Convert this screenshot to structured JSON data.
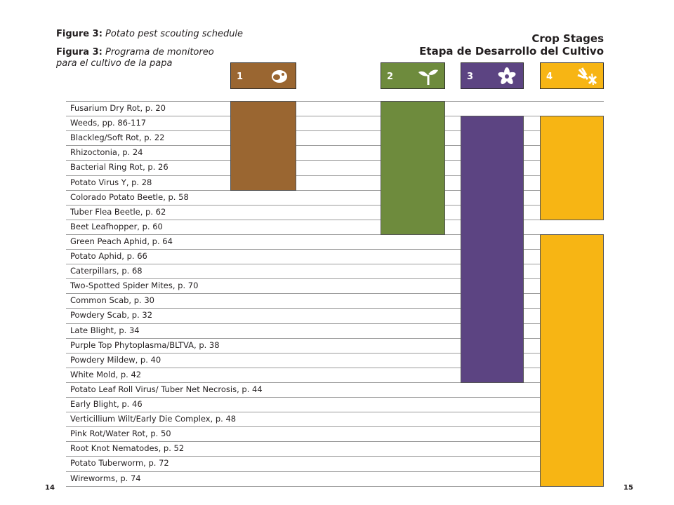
{
  "header": {
    "fig_en_prefix": "Figure 3:",
    "fig_en_title": "Potato pest scouting schedule",
    "fig_es_prefix": "Figura 3:",
    "fig_es_title_line1": "Programa de monitoreo",
    "fig_es_title_line2": "para el cultivo de la papa",
    "stages_en": "Crop Stages",
    "stages_es": "Etapa de Desarrollo del Cultivo"
  },
  "page_numbers": {
    "left": "14",
    "right": "15"
  },
  "chart_data": {
    "type": "table",
    "title": "Figure 3: Potato pest scouting schedule",
    "stages": [
      {
        "label": "1",
        "color": "#9a6631",
        "icon": "seed-tuber-icon"
      },
      {
        "label": "2",
        "color": "#6e8b3d",
        "icon": "sprout-icon"
      },
      {
        "label": "3",
        "color": "#5c4482",
        "icon": "flower-icon"
      },
      {
        "label": "4",
        "color": "#f7b514",
        "icon": "mature-plant-icon"
      }
    ],
    "rows": [
      {
        "pest": "Fusarium Dry Rot, p. 20",
        "stages": [
          1,
          2
        ]
      },
      {
        "pest": "Weeds, pp. 86-117",
        "stages": [
          1,
          2,
          3,
          4
        ]
      },
      {
        "pest": "Blackleg/Soft Rot, p. 22",
        "stages": [
          1,
          2,
          3,
          4
        ]
      },
      {
        "pest": "Rhizoctonia, p. 24",
        "stages": [
          1,
          2,
          3,
          4
        ]
      },
      {
        "pest": "Bacterial Ring Rot, p. 26",
        "stages": [
          1,
          2,
          3,
          4
        ]
      },
      {
        "pest": "Potato Virus Y, p. 28",
        "stages": [
          1,
          2,
          3,
          4
        ]
      },
      {
        "pest": "Colorado Potato Beetle, p. 58",
        "stages": [
          2,
          3,
          4
        ]
      },
      {
        "pest": "Tuber Flea Beetle, p. 62",
        "stages": [
          2,
          3,
          4
        ]
      },
      {
        "pest": "Beet Leafhopper, p. 60",
        "stages": [
          2,
          3
        ]
      },
      {
        "pest": "Green Peach Aphid, p. 64",
        "stages": [
          3,
          4
        ]
      },
      {
        "pest": "Potato Aphid, p. 66",
        "stages": [
          3,
          4
        ]
      },
      {
        "pest": "Caterpillars, p. 68",
        "stages": [
          3,
          4
        ]
      },
      {
        "pest": "Two-Spotted Spider Mites, p. 70",
        "stages": [
          3,
          4
        ]
      },
      {
        "pest": "Common Scab, p. 30",
        "stages": [
          3,
          4
        ]
      },
      {
        "pest": "Powdery Scab, p. 32",
        "stages": [
          3,
          4
        ]
      },
      {
        "pest": "Late Blight, p. 34",
        "stages": [
          3,
          4
        ]
      },
      {
        "pest": "Purple Top Phytoplasma/BLTVA, p. 38",
        "stages": [
          3,
          4
        ]
      },
      {
        "pest": "Powdery Mildew, p. 40",
        "stages": [
          3,
          4
        ]
      },
      {
        "pest": "White Mold, p. 42",
        "stages": [
          3,
          4
        ]
      },
      {
        "pest": "Potato Leaf Roll Virus/ Tuber Net Necrosis, p. 44",
        "stages": [
          4
        ]
      },
      {
        "pest": "Early Blight, p. 46",
        "stages": [
          4
        ]
      },
      {
        "pest": "Verticillium Wilt/Early Die Complex, p. 48",
        "stages": [
          4
        ]
      },
      {
        "pest": "Pink Rot/Water Rot, p. 50",
        "stages": [
          4
        ]
      },
      {
        "pest": "Root Knot Nematodes, p. 52",
        "stages": [
          4
        ]
      },
      {
        "pest": "Potato Tuberworm, p. 72",
        "stages": [
          4
        ]
      },
      {
        "pest": "Wireworms, p. 74",
        "stages": [
          4
        ]
      }
    ]
  }
}
